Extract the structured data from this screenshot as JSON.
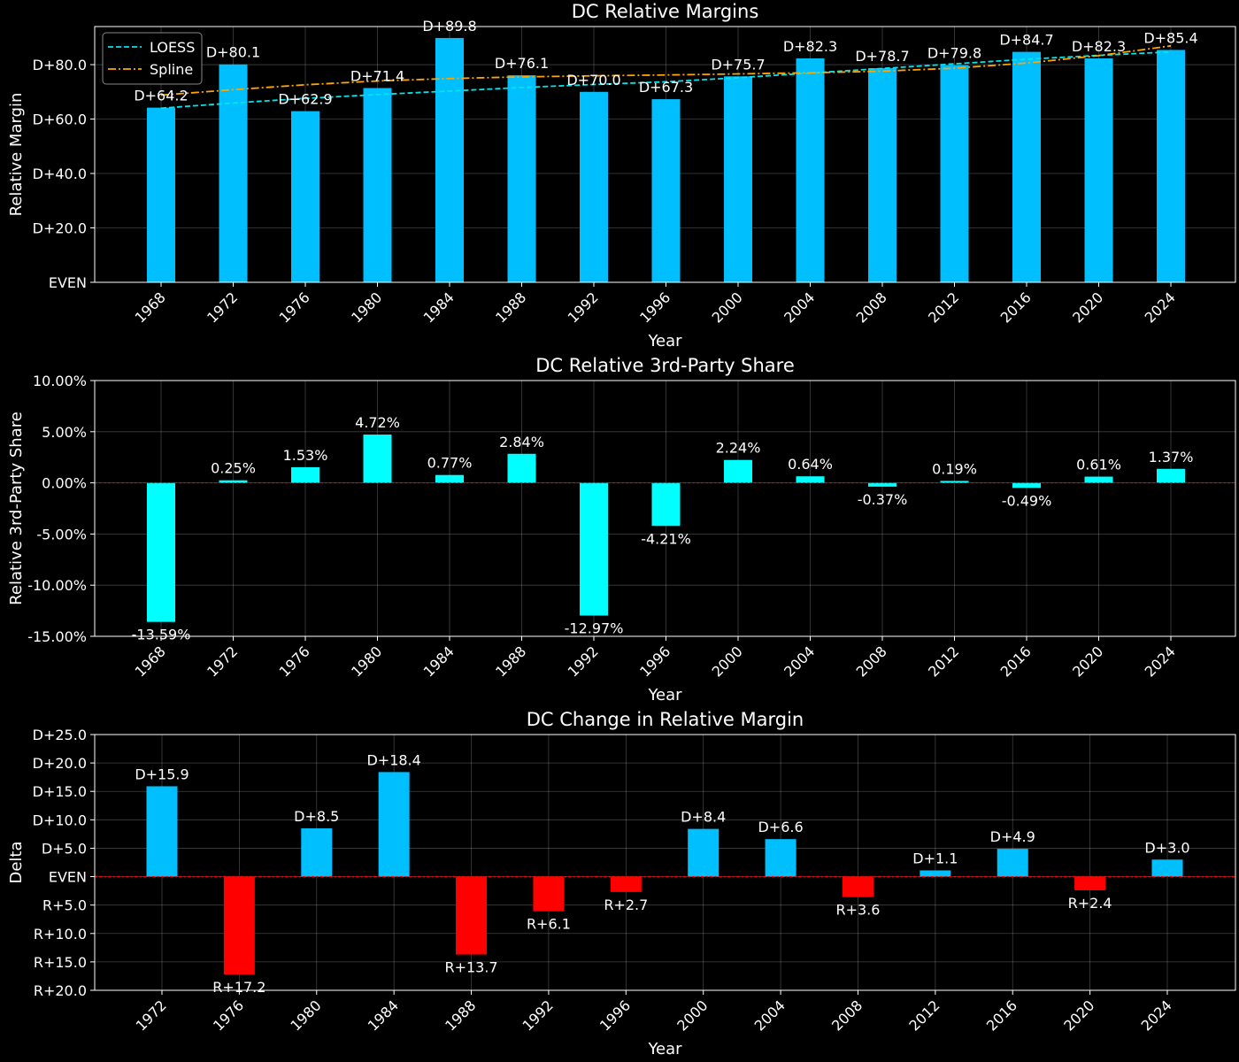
{
  "chart_data": [
    {
      "type": "bar",
      "title": "DC Relative Margins",
      "xlabel": "Year",
      "ylabel": "Relative Margin",
      "categories": [
        "1968",
        "1972",
        "1976",
        "1980",
        "1984",
        "1988",
        "1992",
        "1996",
        "2000",
        "2004",
        "2008",
        "2012",
        "2016",
        "2020",
        "2024"
      ],
      "values": [
        64.2,
        80.1,
        62.9,
        71.4,
        89.8,
        76.1,
        70.0,
        67.3,
        75.7,
        82.3,
        78.7,
        79.8,
        84.7,
        82.3,
        85.4
      ],
      "bar_labels": [
        "D+64.2",
        "D+80.1",
        "D+62.9",
        "D+71.4",
        "D+89.8",
        "D+76.1",
        "D+70.0",
        "D+67.3",
        "D+75.7",
        "D+82.3",
        "D+78.7",
        "D+79.8",
        "D+84.7",
        "D+82.3",
        "D+85.4"
      ],
      "ylim": [
        0,
        94
      ],
      "yticks": [
        0,
        20,
        40,
        60,
        80
      ],
      "ytick_labels": [
        "EVEN",
        "D+20.0",
        "D+40.0",
        "D+60.0",
        "D+80.0"
      ],
      "bar_color": "#00bfff",
      "grid": true,
      "legend_position": "top-left",
      "lines": [
        {
          "name": "LOESS",
          "color": "#00e5ee",
          "dash": "dashed",
          "values": [
            64.0,
            65.9,
            67.6,
            69.0,
            70.3,
            71.6,
            72.7,
            73.7,
            75.2,
            76.9,
            78.6,
            80.3,
            82.0,
            83.4,
            84.7
          ]
        },
        {
          "name": "Spline",
          "color": "#ffa500",
          "dash": "dashdot",
          "values": [
            68.8,
            70.8,
            72.6,
            74.0,
            74.9,
            75.5,
            75.9,
            76.2,
            76.6,
            77.0,
            77.6,
            78.7,
            80.6,
            83.3,
            86.9
          ]
        }
      ]
    },
    {
      "type": "bar",
      "title": "DC Relative 3rd-Party Share",
      "xlabel": "Year",
      "ylabel": "Relative 3rd-Party Share",
      "categories": [
        "1968",
        "1972",
        "1976",
        "1980",
        "1984",
        "1988",
        "1992",
        "1996",
        "2000",
        "2004",
        "2008",
        "2012",
        "2016",
        "2020",
        "2024"
      ],
      "values": [
        -13.59,
        0.25,
        1.53,
        4.72,
        0.77,
        2.84,
        -12.97,
        -4.21,
        2.24,
        0.64,
        -0.37,
        0.19,
        -0.49,
        0.61,
        1.37
      ],
      "bar_labels": [
        "-13.59%",
        "0.25%",
        "1.53%",
        "4.72%",
        "0.77%",
        "2.84%",
        "-12.97%",
        "-4.21%",
        "2.24%",
        "0.64%",
        "-0.37%",
        "0.19%",
        "-0.49%",
        "0.61%",
        "1.37%"
      ],
      "ylim": [
        -15,
        10
      ],
      "yticks": [
        -15,
        -10,
        -5,
        0,
        5,
        10
      ],
      "ytick_labels": [
        "-15.00%",
        "-10.00%",
        "-5.00%",
        "0.00%",
        "5.00%",
        "10.00%"
      ],
      "bar_color": "#00ffff",
      "zero_line_color": "#ff0000",
      "grid": true
    },
    {
      "type": "bar",
      "title": "DC Change in Relative Margin",
      "xlabel": "Year",
      "ylabel": "Delta",
      "categories": [
        "1972",
        "1976",
        "1980",
        "1984",
        "1988",
        "1992",
        "1996",
        "2000",
        "2004",
        "2008",
        "2012",
        "2016",
        "2020",
        "2024"
      ],
      "values": [
        15.9,
        -17.2,
        8.5,
        18.4,
        -13.7,
        -6.1,
        -2.7,
        8.4,
        6.6,
        -3.6,
        1.1,
        4.9,
        -2.4,
        3.0
      ],
      "bar_labels": [
        "D+15.9",
        "R+17.2",
        "D+8.5",
        "D+18.4",
        "R+13.7",
        "R+6.1",
        "R+2.7",
        "D+8.4",
        "D+6.6",
        "R+3.6",
        "D+1.1",
        "D+4.9",
        "R+2.4",
        "D+3.0"
      ],
      "ylim": [
        -20,
        25
      ],
      "yticks": [
        -20,
        -15,
        -10,
        -5,
        0,
        5,
        10,
        15,
        20,
        25
      ],
      "ytick_labels": [
        "R+20.0",
        "R+15.0",
        "R+10.0",
        "R+5.0",
        "EVEN",
        "D+5.0",
        "D+10.0",
        "D+15.0",
        "D+20.0",
        "D+25.0"
      ],
      "positive_color": "#00bfff",
      "negative_color": "#ff0000",
      "zero_line_color": "#ff0000",
      "grid": true
    }
  ]
}
